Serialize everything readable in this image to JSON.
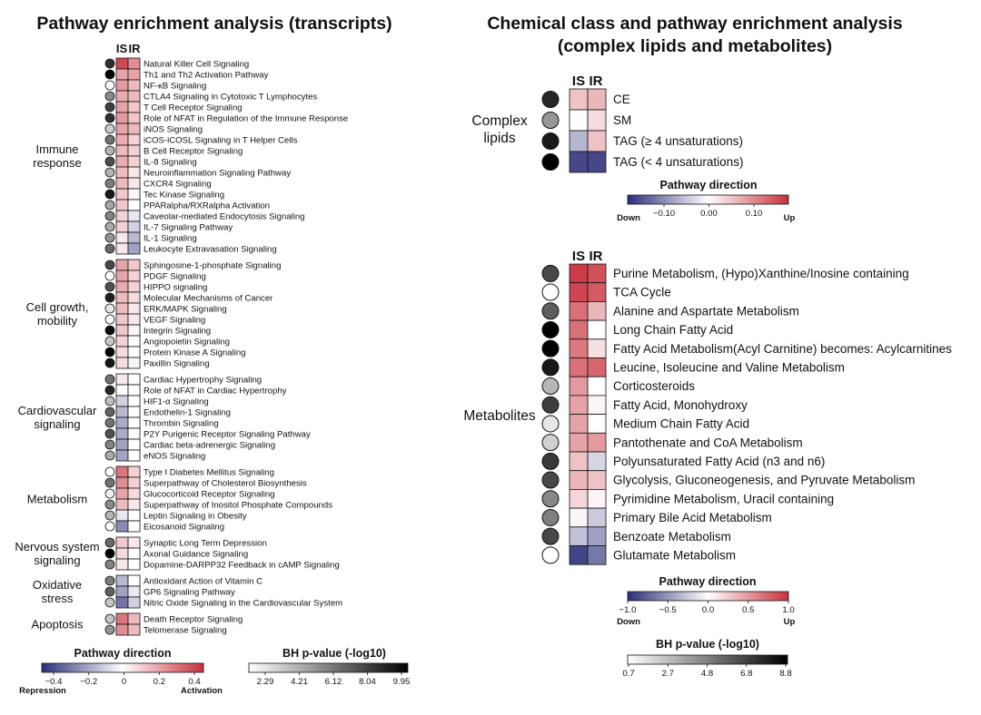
{
  "chart_data": [
    {
      "type": "heatmap",
      "title": "Pathway enrichment analysis (transcripts)",
      "columns": [
        "IS",
        "IR"
      ],
      "groups": [
        {
          "label": "Immune response",
          "rows": [
            {
              "pathway": "Natural Killer Cell Signaling",
              "IS": 0.4,
              "IR": 0.25,
              "p": 8.5
            },
            {
              "pathway": "Th1 and Th2 Activation Pathway",
              "IS": 0.2,
              "IR": 0.2,
              "p": 9.95
            },
            {
              "pathway": "NF-κB Signaling",
              "IS": 0.22,
              "IR": 0.15,
              "p": 2.29
            },
            {
              "pathway": "CTLA4 Signaling in Cytotoxic T Lymphocytes",
              "IS": 0.18,
              "IR": 0.15,
              "p": 5.8
            },
            {
              "pathway": "T Cell Receptor Signaling",
              "IS": 0.2,
              "IR": 0.12,
              "p": 8.0
            },
            {
              "pathway": "Role of NFAT in Regulation of the Immune Response",
              "IS": 0.22,
              "IR": 0.12,
              "p": 8.5
            },
            {
              "pathway": "iNOS Signaling",
              "IS": 0.2,
              "IR": 0.15,
              "p": 3.8
            },
            {
              "pathway": "iCOS-iCOSL Signaling in T Helper Cells",
              "IS": 0.18,
              "IR": 0.1,
              "p": 6.5
            },
            {
              "pathway": "B Cell Receptor Signaling",
              "IS": 0.15,
              "IR": 0.1,
              "p": 4.5
            },
            {
              "pathway": "IL-8 Signaling",
              "IS": 0.18,
              "IR": 0.1,
              "p": 7.6
            },
            {
              "pathway": "Neuroinflammation Signaling Pathway",
              "IS": 0.15,
              "IR": 0.05,
              "p": 4.6
            },
            {
              "pathway": "CXCR4 Signaling",
              "IS": 0.15,
              "IR": 0.05,
              "p": 6.2
            },
            {
              "pathway": "Tec Kinase Signaling",
              "IS": 0.12,
              "IR": 0.02,
              "p": 9.2
            },
            {
              "pathway": "PPARalpha/RXRalpha Activation",
              "IS": 0.12,
              "IR": 0.0,
              "p": 5.0
            },
            {
              "pathway": "Caveolar-mediated Endocytosis Signaling",
              "IS": 0.1,
              "IR": -0.05,
              "p": 6.0
            },
            {
              "pathway": "IL-7 Signaling Pathway",
              "IS": 0.1,
              "IR": -0.1,
              "p": 4.8
            },
            {
              "pathway": "IL-1 Signaling",
              "IS": 0.05,
              "IR": -0.15,
              "p": 5.5
            },
            {
              "pathway": "Leukocyte Extravasation Signaling",
              "IS": 0.05,
              "IR": -0.2,
              "p": 6.8
            }
          ]
        },
        {
          "label": "Cell growth, mobility",
          "rows": [
            {
              "pathway": "Sphingosine-1-phosphate Signaling",
              "IS": 0.2,
              "IR": 0.12,
              "p": 7.8
            },
            {
              "pathway": "PDGF Signaling",
              "IS": 0.2,
              "IR": 0.1,
              "p": 2.29
            },
            {
              "pathway": "HIPPO signaling",
              "IS": 0.18,
              "IR": 0.1,
              "p": 7.5
            },
            {
              "pathway": "Molecular Mechanisms of Cancer",
              "IS": 0.15,
              "IR": 0.08,
              "p": 9.0
            },
            {
              "pathway": "ERK/MAPK Signaling",
              "IS": 0.15,
              "IR": 0.05,
              "p": 3.0
            },
            {
              "pathway": "VEGF Signaling",
              "IS": 0.12,
              "IR": 0.05,
              "p": 2.5
            },
            {
              "pathway": "Integrin Signaling",
              "IS": 0.12,
              "IR": 0.02,
              "p": 9.5
            },
            {
              "pathway": "Angiopoietin Signaling",
              "IS": 0.1,
              "IR": 0.0,
              "p": 4.0
            },
            {
              "pathway": "Protein Kinase A Signaling",
              "IS": 0.08,
              "IR": 0.0,
              "p": 9.8
            },
            {
              "pathway": "Paxillin Signaling",
              "IS": 0.08,
              "IR": -0.02,
              "p": 9.3
            }
          ]
        },
        {
          "label": "Cardiovascular signaling",
          "rows": [
            {
              "pathway": "Cardiac Hypertrophy Signaling",
              "IS": 0.05,
              "IR": 0.0,
              "p": 6.5
            },
            {
              "pathway": "Role of NFAT in Cardiac Hypertrophy",
              "IS": 0.0,
              "IR": 0.0,
              "p": 8.8
            },
            {
              "pathway": "HIF1-α Signaling",
              "IS": -0.1,
              "IR": 0.0,
              "p": 4.2
            },
            {
              "pathway": "Endothelin-1 Signaling",
              "IS": -0.15,
              "IR": 0.0,
              "p": 7.0
            },
            {
              "pathway": "Thrombin Signaling",
              "IS": -0.18,
              "IR": 0.0,
              "p": 6.5
            },
            {
              "pathway": "P2Y Purigenic Receptor Signaling Pathway",
              "IS": -0.18,
              "IR": 0.0,
              "p": 7.5
            },
            {
              "pathway": "Cardiac beta-adrenergic Signaling",
              "IS": -0.2,
              "IR": 0.0,
              "p": 6.0
            },
            {
              "pathway": "eNOS Signaling",
              "IS": -0.2,
              "IR": 0.0,
              "p": 4.8
            }
          ]
        },
        {
          "label": "Metabolism",
          "rows": [
            {
              "pathway": "Type I Diabetes Mellitus Signaling",
              "IS": 0.3,
              "IR": 0.1,
              "p": 2.29
            },
            {
              "pathway": "Superpathway of Cholesterol Biosynthesis",
              "IS": 0.25,
              "IR": 0.1,
              "p": 6.5
            },
            {
              "pathway": "Glucocorticoid Receptor Signaling",
              "IS": 0.2,
              "IR": 0.08,
              "p": 2.8
            },
            {
              "pathway": "Superpathway of Inositol Phosphate Compounds",
              "IS": 0.15,
              "IR": 0.05,
              "p": 5.8
            },
            {
              "pathway": "Leptin Signaling in Obesity",
              "IS": -0.05,
              "IR": 0.0,
              "p": 4.5
            },
            {
              "pathway": "Eicosanoid Signaling",
              "IS": -0.25,
              "IR": 0.0,
              "p": 2.29
            }
          ]
        },
        {
          "label": "Nervous system signaling",
          "rows": [
            {
              "pathway": "Synaptic Long Term Depression",
              "IS": 0.12,
              "IR": 0.05,
              "p": 6.8
            },
            {
              "pathway": "Axonal Guidance Signaling",
              "IS": 0.08,
              "IR": 0.0,
              "p": 9.95
            },
            {
              "pathway": "Dopamine-DARPP32 Feedback in cAMP Signaling",
              "IS": 0.05,
              "IR": 0.0,
              "p": 6.0
            }
          ]
        },
        {
          "label": "Oxidative stress",
          "rows": [
            {
              "pathway": "Antioxidant Action of Vitamin C",
              "IS": -0.15,
              "IR": 0.0,
              "p": 6.2
            },
            {
              "pathway": "GP6 Signaling Pathway",
              "IS": -0.2,
              "IR": -0.05,
              "p": 7.0
            },
            {
              "pathway": "Nitric Oxide Signaling in the Cardiovascular System",
              "IS": -0.3,
              "IR": -0.1,
              "p": 4.0
            }
          ]
        },
        {
          "label": "Apoptosis",
          "rows": [
            {
              "pathway": "Death Receptor Signaling",
              "IS": 0.3,
              "IR": 0.15,
              "p": 4.0
            },
            {
              "pathway": "Telomerase Signaling",
              "IS": 0.25,
              "IR": 0.15,
              "p": 5.5
            }
          ]
        }
      ],
      "direction_legend": {
        "title": "Pathway direction",
        "ticks": [
          "−0.4",
          "−0.2",
          "0",
          "0.2",
          "0.4"
        ],
        "low": "Repression",
        "high": "Activation",
        "range": [
          -0.45,
          0.45
        ]
      },
      "pvalue_legend": {
        "title": "BH p-value (-log10)",
        "ticks": [
          "2.29",
          "4.21",
          "6.12",
          "8.04",
          "9.95"
        ],
        "range": [
          2.29,
          9.95
        ]
      }
    },
    {
      "type": "heatmap",
      "title_line1": "Chemical class and pathway enrichment analysis",
      "title_line2": "(complex lipids and metabolites)",
      "columns": [
        "IS",
        "IR"
      ],
      "complex_lipids": {
        "label_line1": "Complex",
        "label_line2": "lipids",
        "rows": [
          {
            "name": "CE",
            "IS": 0.05,
            "IR": 0.06,
            "p": 7.6
          },
          {
            "name": "SM",
            "IS": 0.0,
            "IR": 0.03,
            "p": 4.0
          },
          {
            "name": "TAG (≥ 4 unsaturations)",
            "IS": -0.06,
            "IR": 0.05,
            "p": 8.0
          },
          {
            "name": "TAG (< 4 unsaturations)",
            "IS": -0.15,
            "IR": -0.15,
            "p": 8.8
          }
        ],
        "legend": {
          "title": "Pathway direction",
          "ticks": [
            "−0.10",
            "0.00",
            "0.10"
          ],
          "low": "Down",
          "high": "Up",
          "range": [
            -0.17,
            0.17
          ]
        }
      },
      "metabolites": {
        "label": "Metabolites",
        "rows": [
          {
            "name": "Purine Metabolism, (Hypo)Xanthine/Inosine containing",
            "IS": 0.95,
            "IR": 0.85,
            "p": 6.5
          },
          {
            "name": "TCA Cycle",
            "IS": 0.9,
            "IR": 0.8,
            "p": 0.7
          },
          {
            "name": "Alanine and Aspartate Metabolism",
            "IS": 0.7,
            "IR": 0.35,
            "p": 5.8
          },
          {
            "name": "Long Chain Fatty Acid",
            "IS": 0.7,
            "IR": 0.0,
            "p": 8.8
          },
          {
            "name": "Fatty Acid Metabolism(Acyl Carnitine) becomes: Acylcarnitines",
            "IS": 0.65,
            "IR": 0.15,
            "p": 8.8
          },
          {
            "name": "Leucine, Isoleucine and Valine Metabolism",
            "IS": 0.7,
            "IR": 0.75,
            "p": 8.0
          },
          {
            "name": "Corticosteroids",
            "IS": 0.5,
            "IR": 0.0,
            "p": 3.0
          },
          {
            "name": "Fatty Acid, Monohydroxy",
            "IS": 0.45,
            "IR": 0.05,
            "p": 6.8
          },
          {
            "name": "Medium Chain Fatty Acid",
            "IS": 0.45,
            "IR": 0.0,
            "p": 1.5
          },
          {
            "name": "Pantothenate and CoA Metabolism",
            "IS": 0.45,
            "IR": 0.5,
            "p": 2.2
          },
          {
            "name": "Polyunsaturated Fatty Acid (n3 and n6)",
            "IS": 0.3,
            "IR": -0.2,
            "p": 7.0
          },
          {
            "name": "Glycolysis, Gluconeogenesis, and Pyruvate Metabolism",
            "IS": 0.35,
            "IR": 0.3,
            "p": 6.5
          },
          {
            "name": "Pyrimidine Metabolism, Uracil containing",
            "IS": 0.2,
            "IR": 0.05,
            "p": 4.5
          },
          {
            "name": "Primary Bile Acid Metabolism",
            "IS": 0.05,
            "IR": -0.25,
            "p": 4.8
          },
          {
            "name": "Benzoate Metabolism",
            "IS": -0.3,
            "IR": -0.45,
            "p": 6.5
          },
          {
            "name": "Glutamate Metabolism",
            "IS": -0.9,
            "IR": -0.65,
            "p": 0.7
          }
        ],
        "legend": {
          "title": "Pathway direction",
          "ticks": [
            "−1.0",
            "−0.5",
            "0.0",
            "0.5",
            "1.0"
          ],
          "low": "Down",
          "high": "Up",
          "range": [
            -1.0,
            1.0
          ]
        }
      },
      "pvalue_legend": {
        "title": "BH p-value (-log10)",
        "ticks": [
          "0.7",
          "2.7",
          "4.8",
          "6.8",
          "8.8"
        ],
        "range": [
          0.7,
          8.8
        ]
      }
    }
  ]
}
